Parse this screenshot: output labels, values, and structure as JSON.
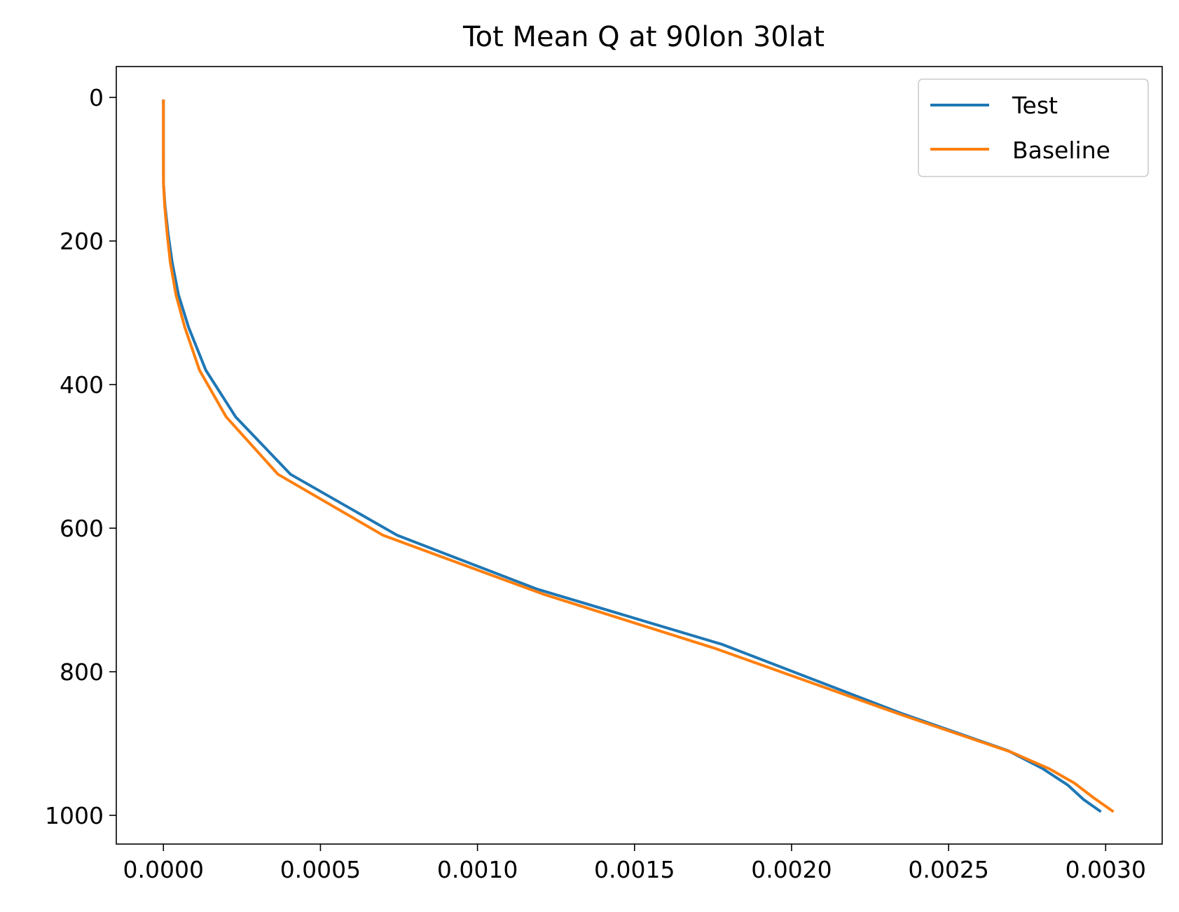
{
  "chart_data": {
    "type": "line",
    "title": "Tot Mean Q at 90lon 30lat",
    "xlabel": "",
    "ylabel": "",
    "xlim": [
      -0.00015,
      0.00318
    ],
    "ylim": [
      1040,
      -43
    ],
    "y_inverted": true,
    "grid": false,
    "legend_position": "top-right",
    "x_ticks": [
      0.0,
      0.0005,
      0.001,
      0.0015,
      0.002,
      0.0025,
      0.003
    ],
    "x_tick_labels": [
      "0.0000",
      "0.0005",
      "0.0010",
      "0.0015",
      "0.0020",
      "0.0025",
      "0.0030"
    ],
    "y_ticks": [
      0,
      200,
      400,
      600,
      800,
      1000
    ],
    "y_tick_labels": [
      "0",
      "200",
      "400",
      "600",
      "800",
      "1000"
    ],
    "series": [
      {
        "name": "Test",
        "color": "#1f77b4",
        "points": [
          [
            1e-07,
            3
          ],
          [
            1e-07,
            20
          ],
          [
            1e-07,
            50
          ],
          [
            2e-07,
            80
          ],
          [
            3e-07,
            120
          ],
          [
            5e-06,
            150
          ],
          [
            1.5e-05,
            190
          ],
          [
            2.8e-05,
            230
          ],
          [
            4.8e-05,
            275
          ],
          [
            8e-05,
            320
          ],
          [
            0.000135,
            380
          ],
          [
            0.00023,
            445
          ],
          [
            0.000405,
            525
          ],
          [
            0.000745,
            610
          ],
          [
            0.00119,
            685
          ],
          [
            0.00178,
            762
          ],
          [
            0.00235,
            858
          ],
          [
            0.00269,
            910
          ],
          [
            0.0028,
            935
          ],
          [
            0.00288,
            958
          ],
          [
            0.00293,
            978
          ],
          [
            0.002985,
            995
          ]
        ]
      },
      {
        "name": "Baseline",
        "color": "#ff7f0e",
        "points": [
          [
            1e-07,
            3
          ],
          [
            1e-07,
            20
          ],
          [
            1e-07,
            50
          ],
          [
            2e-07,
            80
          ],
          [
            3e-07,
            120
          ],
          [
            4e-06,
            150
          ],
          [
            1.2e-05,
            190
          ],
          [
            2.2e-05,
            230
          ],
          [
            4e-05,
            275
          ],
          [
            6.8e-05,
            320
          ],
          [
            0.000115,
            380
          ],
          [
            0.0002,
            445
          ],
          [
            0.000365,
            525
          ],
          [
            0.0007,
            610
          ],
          [
            0.00121,
            692
          ],
          [
            0.00176,
            768
          ],
          [
            0.00235,
            860
          ],
          [
            0.0027,
            912
          ],
          [
            0.00282,
            935
          ],
          [
            0.0029,
            955
          ],
          [
            0.00296,
            975
          ],
          [
            0.003025,
            995
          ]
        ]
      }
    ]
  }
}
